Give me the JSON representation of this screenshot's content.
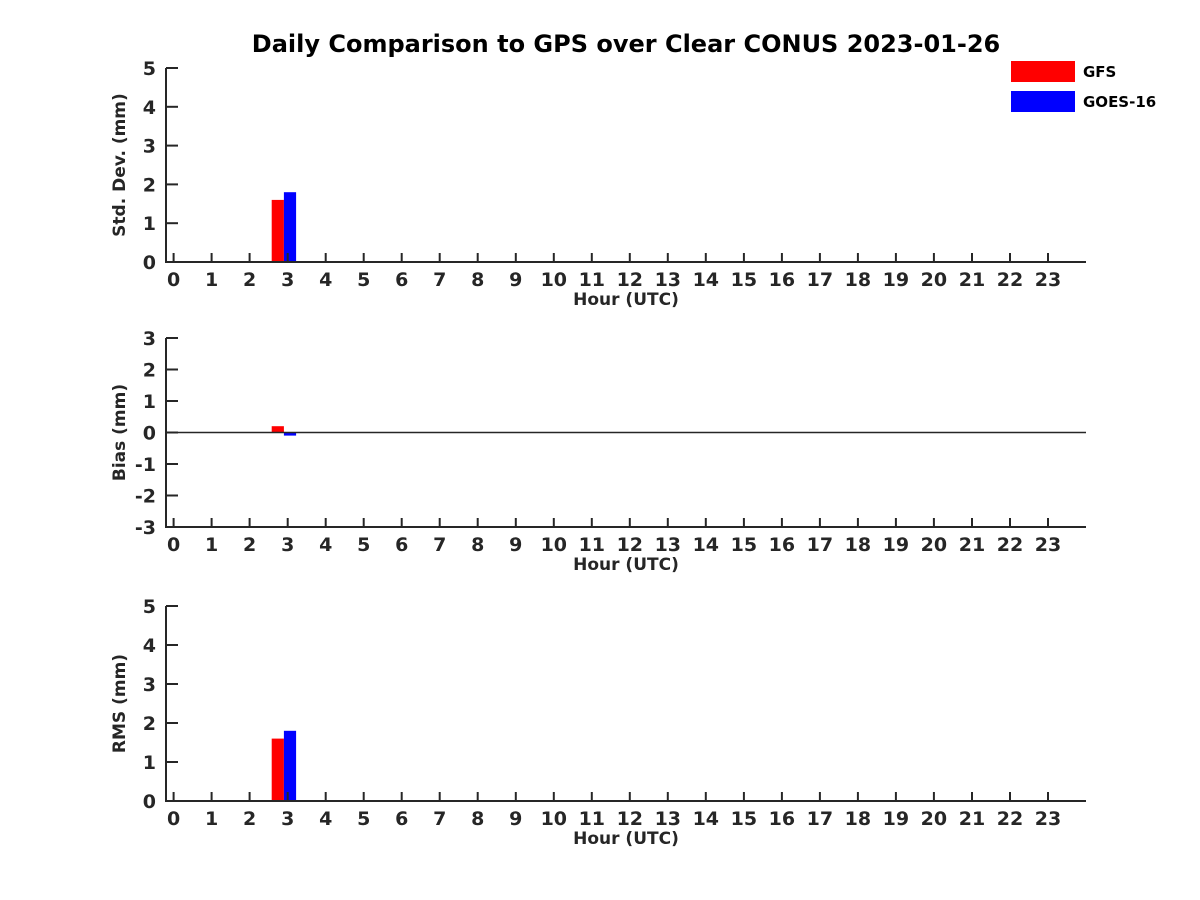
{
  "title": "Daily Comparison to GPS over Clear CONUS 2023-01-26",
  "legend": {
    "items": [
      {
        "label": "GFS",
        "color": "#ff0000"
      },
      {
        "label": "GOES-16",
        "color": "#0000ff"
      }
    ]
  },
  "colors": {
    "gfs": "#ff0000",
    "goes16": "#0000ff",
    "axis": "#262626",
    "title_text": "#000000",
    "background": "#ffffff"
  },
  "chart_data": [
    {
      "type": "bar",
      "ylabel": "Std. Dev. (mm)",
      "xlabel": "Hour (UTC)",
      "xlim": [
        -0.2,
        24
      ],
      "ylim": [
        0,
        5
      ],
      "xticks": [
        0,
        1,
        2,
        3,
        4,
        5,
        6,
        7,
        8,
        9,
        10,
        11,
        12,
        13,
        14,
        15,
        16,
        17,
        18,
        19,
        20,
        21,
        22,
        23
      ],
      "yticks": [
        0,
        1,
        2,
        3,
        4,
        5
      ],
      "grid": false,
      "zero_line": false,
      "legend_position": "upper-right-outside",
      "x": [
        3
      ],
      "series": [
        {
          "name": "GFS",
          "color": "#ff0000",
          "values": [
            1.6
          ]
        },
        {
          "name": "GOES-16",
          "color": "#0000ff",
          "values": [
            1.8
          ]
        }
      ]
    },
    {
      "type": "bar",
      "ylabel": "Bias (mm)",
      "xlabel": "Hour (UTC)",
      "xlim": [
        -0.2,
        24
      ],
      "ylim": [
        -3,
        3
      ],
      "xticks": [
        0,
        1,
        2,
        3,
        4,
        5,
        6,
        7,
        8,
        9,
        10,
        11,
        12,
        13,
        14,
        15,
        16,
        17,
        18,
        19,
        20,
        21,
        22,
        23
      ],
      "yticks": [
        -3,
        -2,
        -1,
        0,
        1,
        2,
        3
      ],
      "grid": false,
      "zero_line": true,
      "x": [
        3
      ],
      "series": [
        {
          "name": "GFS",
          "color": "#ff0000",
          "values": [
            0.2
          ]
        },
        {
          "name": "GOES-16",
          "color": "#0000ff",
          "values": [
            -0.1
          ]
        }
      ]
    },
    {
      "type": "bar",
      "ylabel": "RMS (mm)",
      "xlabel": "Hour (UTC)",
      "xlim": [
        -0.2,
        24
      ],
      "ylim": [
        0,
        5
      ],
      "xticks": [
        0,
        1,
        2,
        3,
        4,
        5,
        6,
        7,
        8,
        9,
        10,
        11,
        12,
        13,
        14,
        15,
        16,
        17,
        18,
        19,
        20,
        21,
        22,
        23
      ],
      "yticks": [
        0,
        1,
        2,
        3,
        4,
        5
      ],
      "grid": false,
      "zero_line": false,
      "x": [
        3
      ],
      "series": [
        {
          "name": "GFS",
          "color": "#ff0000",
          "values": [
            1.6
          ]
        },
        {
          "name": "GOES-16",
          "color": "#0000ff",
          "values": [
            1.8
          ]
        }
      ]
    }
  ]
}
